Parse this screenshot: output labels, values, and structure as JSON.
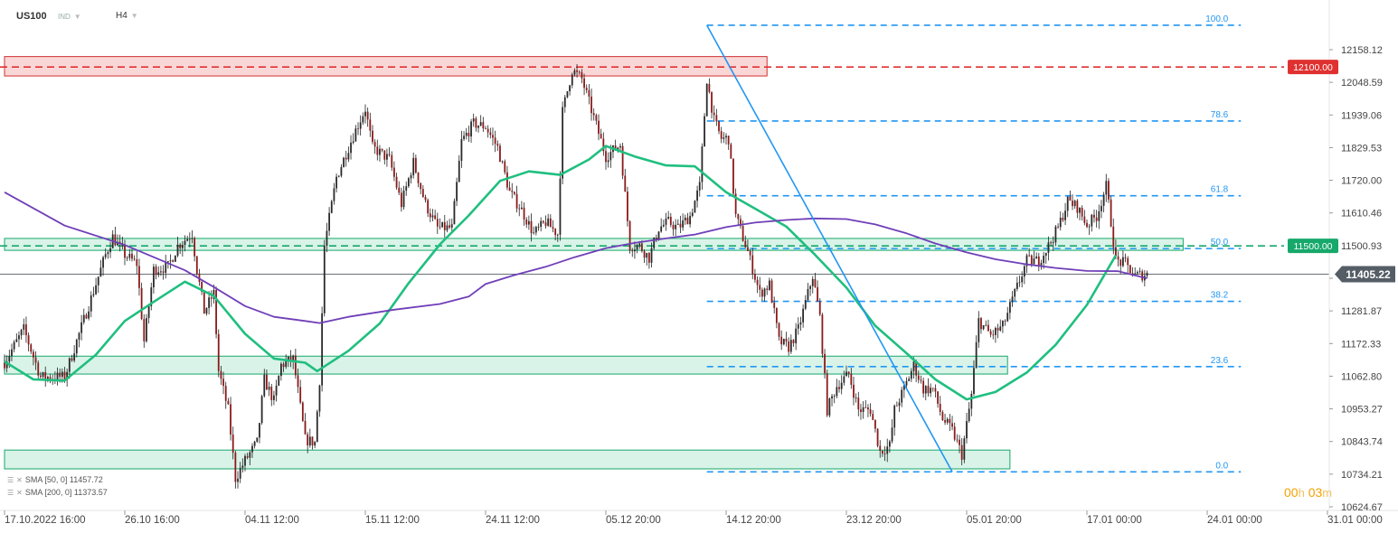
{
  "header": {
    "symbol": "US100",
    "market": "IND",
    "timeframe": "H4"
  },
  "legend": [
    {
      "label": "SMA  [50,  0]  11457.72",
      "color": "#1fbf7f"
    },
    {
      "label": "SMA  [200,  0]  11373.57",
      "color": "#6f3fb8"
    }
  ],
  "timer": {
    "hours": "00",
    "h_unit": "h",
    "minutes": "03",
    "m_unit": "m"
  },
  "chart_data": {
    "type": "line",
    "title": "",
    "y_ticks": [
      "12158.12",
      "12048.59",
      "11939.06",
      "11829.53",
      "11720.00",
      "11610.46",
      "11500.93",
      "11391.40",
      "11281.87",
      "11172.33",
      "11062.80",
      "10953.27",
      "10843.74",
      "10734.21",
      "10624.67"
    ],
    "x_ticks": [
      "17.10.2022  16:00",
      "26.10  16:00",
      "04.11  12:00",
      "15.11  12:00",
      "24.11  12:00",
      "05.12  20:00",
      "14.12  20:00",
      "23.12  20:00",
      "05.01  20:00",
      "17.01  00:00",
      "24.01  00:00",
      "31.01  00:00"
    ],
    "x_tick_index": [
      0,
      50,
      100,
      150,
      200,
      250,
      300,
      350,
      400,
      450,
      500,
      550
    ],
    "ylim": [
      10624.67,
      12158.12
    ],
    "last_price": {
      "label": "11405.22",
      "value": 11405.22,
      "color": "#555d66"
    },
    "price_levels": [
      {
        "label": "12100.00",
        "value": 12100.0,
        "color": "#e03131"
      },
      {
        "label": "11500.00",
        "value": 11500.0,
        "color": "#17a86b"
      }
    ],
    "fibonacci": {
      "high": 12240,
      "low": 10742,
      "start_index": 292,
      "end_index": 514,
      "levels": [
        {
          "label": "100.0",
          "value": 12240
        },
        {
          "label": "78.6",
          "value": 11919
        },
        {
          "label": "61.8",
          "value": 11668
        },
        {
          "label": "50.0",
          "value": 11491
        },
        {
          "label": "38.2",
          "value": 11314
        },
        {
          "label": "23.6",
          "value": 11095
        },
        {
          "label": "0.0",
          "value": 10742
        }
      ]
    },
    "zones": [
      {
        "kind": "resistance",
        "from": 12070,
        "to": 12135,
        "start_index": 0,
        "end_index": 317,
        "color": "#f08c8c"
      },
      {
        "kind": "support",
        "from": 11485,
        "to": 11525,
        "start_index": 0,
        "end_index": 490,
        "color": "#2fbf7f"
      },
      {
        "kind": "support",
        "from": 11070,
        "to": 11130,
        "start_index": 0,
        "end_index": 417,
        "color": "#2fbf7f"
      },
      {
        "kind": "support",
        "from": 10752,
        "to": 10815,
        "start_index": 0,
        "end_index": 418,
        "color": "#2fbf7f"
      }
    ],
    "trendline": {
      "from_index": 292,
      "from_value": 12240,
      "to_index": 394,
      "to_value": 10742,
      "color": "#2196f3"
    },
    "series": [
      {
        "name": "SMA [50, 0]",
        "color": "#1fbf7f",
        "points": [
          [
            0,
            11112
          ],
          [
            12,
            11052
          ],
          [
            25,
            11048
          ],
          [
            38,
            11135
          ],
          [
            50,
            11248
          ],
          [
            62,
            11312
          ],
          [
            75,
            11380
          ],
          [
            87,
            11332
          ],
          [
            100,
            11205
          ],
          [
            112,
            11122
          ],
          [
            125,
            11108
          ],
          [
            130,
            11080
          ],
          [
            143,
            11148
          ],
          [
            156,
            11240
          ],
          [
            168,
            11375
          ],
          [
            181,
            11505
          ],
          [
            193,
            11602
          ],
          [
            206,
            11718
          ],
          [
            218,
            11750
          ],
          [
            231,
            11738
          ],
          [
            243,
            11790
          ],
          [
            250,
            11835
          ],
          [
            262,
            11800
          ],
          [
            275,
            11770
          ],
          [
            287,
            11767
          ],
          [
            300,
            11680
          ],
          [
            312,
            11625
          ],
          [
            325,
            11565
          ],
          [
            337,
            11470
          ],
          [
            350,
            11360
          ],
          [
            362,
            11232
          ],
          [
            375,
            11140
          ],
          [
            387,
            11052
          ],
          [
            400,
            10985
          ],
          [
            412,
            11010
          ],
          [
            425,
            11075
          ],
          [
            437,
            11168
          ],
          [
            450,
            11302
          ],
          [
            462,
            11468
          ]
        ]
      },
      {
        "name": "SMA [200, 0]",
        "color": "#6f3fb8",
        "points": [
          [
            0,
            11680
          ],
          [
            25,
            11568
          ],
          [
            50,
            11503
          ],
          [
            75,
            11418
          ],
          [
            87,
            11362
          ],
          [
            100,
            11298
          ],
          [
            112,
            11262
          ],
          [
            125,
            11248
          ],
          [
            131,
            11241
          ],
          [
            143,
            11262
          ],
          [
            162,
            11286
          ],
          [
            181,
            11305
          ],
          [
            193,
            11330
          ],
          [
            200,
            11372
          ],
          [
            212,
            11402
          ],
          [
            225,
            11430
          ],
          [
            237,
            11462
          ],
          [
            250,
            11492
          ],
          [
            262,
            11510
          ],
          [
            275,
            11525
          ],
          [
            287,
            11538
          ],
          [
            300,
            11563
          ],
          [
            312,
            11578
          ],
          [
            325,
            11587
          ],
          [
            337,
            11592
          ],
          [
            350,
            11590
          ],
          [
            362,
            11572
          ],
          [
            375,
            11542
          ],
          [
            387,
            11508
          ],
          [
            400,
            11478
          ],
          [
            412,
            11455
          ],
          [
            425,
            11438
          ],
          [
            437,
            11426
          ],
          [
            450,
            11416
          ],
          [
            463,
            11415
          ],
          [
            475,
            11391
          ]
        ]
      }
    ],
    "candles": {
      "type": "candlestick",
      "count": 476,
      "anchors": [
        [
          0,
          11110
        ],
        [
          8,
          11220
        ],
        [
          15,
          11060
        ],
        [
          25,
          11060
        ],
        [
          35,
          11300
        ],
        [
          42,
          11470
        ],
        [
          45,
          11530
        ],
        [
          50,
          11470
        ],
        [
          55,
          11440
        ],
        [
          58,
          11180
        ],
        [
          62,
          11420
        ],
        [
          68,
          11430
        ],
        [
          72,
          11500
        ],
        [
          78,
          11540
        ],
        [
          80,
          11420
        ],
        [
          83,
          11280
        ],
        [
          87,
          11340
        ],
        [
          89,
          11080
        ],
        [
          93,
          10950
        ],
        [
          96,
          10720
        ],
        [
          100,
          10780
        ],
        [
          105,
          10840
        ],
        [
          108,
          11050
        ],
        [
          112,
          10980
        ],
        [
          115,
          11100
        ],
        [
          120,
          11120
        ],
        [
          125,
          10850
        ],
        [
          129,
          10840
        ],
        [
          131,
          11050
        ],
        [
          133,
          11500
        ],
        [
          138,
          11730
        ],
        [
          145,
          11870
        ],
        [
          150,
          11960
        ],
        [
          153,
          11830
        ],
        [
          160,
          11790
        ],
        [
          165,
          11640
        ],
        [
          170,
          11780
        ],
        [
          175,
          11640
        ],
        [
          180,
          11560
        ],
        [
          186,
          11560
        ],
        [
          190,
          11850
        ],
        [
          195,
          11910
        ],
        [
          200,
          11900
        ],
        [
          205,
          11830
        ],
        [
          210,
          11680
        ],
        [
          215,
          11620
        ],
        [
          220,
          11540
        ],
        [
          225,
          11580
        ],
        [
          230,
          11540
        ],
        [
          232,
          11950
        ],
        [
          236,
          12090
        ],
        [
          240,
          12060
        ],
        [
          245,
          11930
        ],
        [
          250,
          11800
        ],
        [
          256,
          11840
        ],
        [
          260,
          11500
        ],
        [
          264,
          11500
        ],
        [
          268,
          11460
        ],
        [
          272,
          11560
        ],
        [
          276,
          11580
        ],
        [
          280,
          11560
        ],
        [
          285,
          11600
        ],
        [
          289,
          11700
        ],
        [
          292,
          12060
        ],
        [
          295,
          11920
        ],
        [
          298,
          11860
        ],
        [
          301,
          11860
        ],
        [
          304,
          11600
        ],
        [
          309,
          11480
        ],
        [
          314,
          11340
        ],
        [
          318,
          11370
        ],
        [
          322,
          11180
        ],
        [
          326,
          11160
        ],
        [
          330,
          11220
        ],
        [
          336,
          11400
        ],
        [
          339,
          11260
        ],
        [
          342,
          10950
        ],
        [
          346,
          11030
        ],
        [
          351,
          11070
        ],
        [
          355,
          10950
        ],
        [
          360,
          10950
        ],
        [
          364,
          10810
        ],
        [
          368,
          10830
        ],
        [
          370,
          10950
        ],
        [
          374,
          11020
        ],
        [
          378,
          11100
        ],
        [
          382,
          11020
        ],
        [
          386,
          11020
        ],
        [
          390,
          10920
        ],
        [
          394,
          10880
        ],
        [
          398,
          10800
        ],
        [
          402,
          11000
        ],
        [
          405,
          11250
        ],
        [
          410,
          11200
        ],
        [
          415,
          11230
        ],
        [
          420,
          11340
        ],
        [
          425,
          11450
        ],
        [
          430,
          11450
        ],
        [
          434,
          11500
        ],
        [
          438,
          11560
        ],
        [
          442,
          11650
        ],
        [
          446,
          11630
        ],
        [
          450,
          11570
        ],
        [
          454,
          11600
        ],
        [
          458,
          11700
        ],
        [
          460,
          11580
        ],
        [
          462,
          11450
        ],
        [
          466,
          11440
        ],
        [
          470,
          11400
        ],
        [
          475,
          11405
        ]
      ]
    }
  }
}
